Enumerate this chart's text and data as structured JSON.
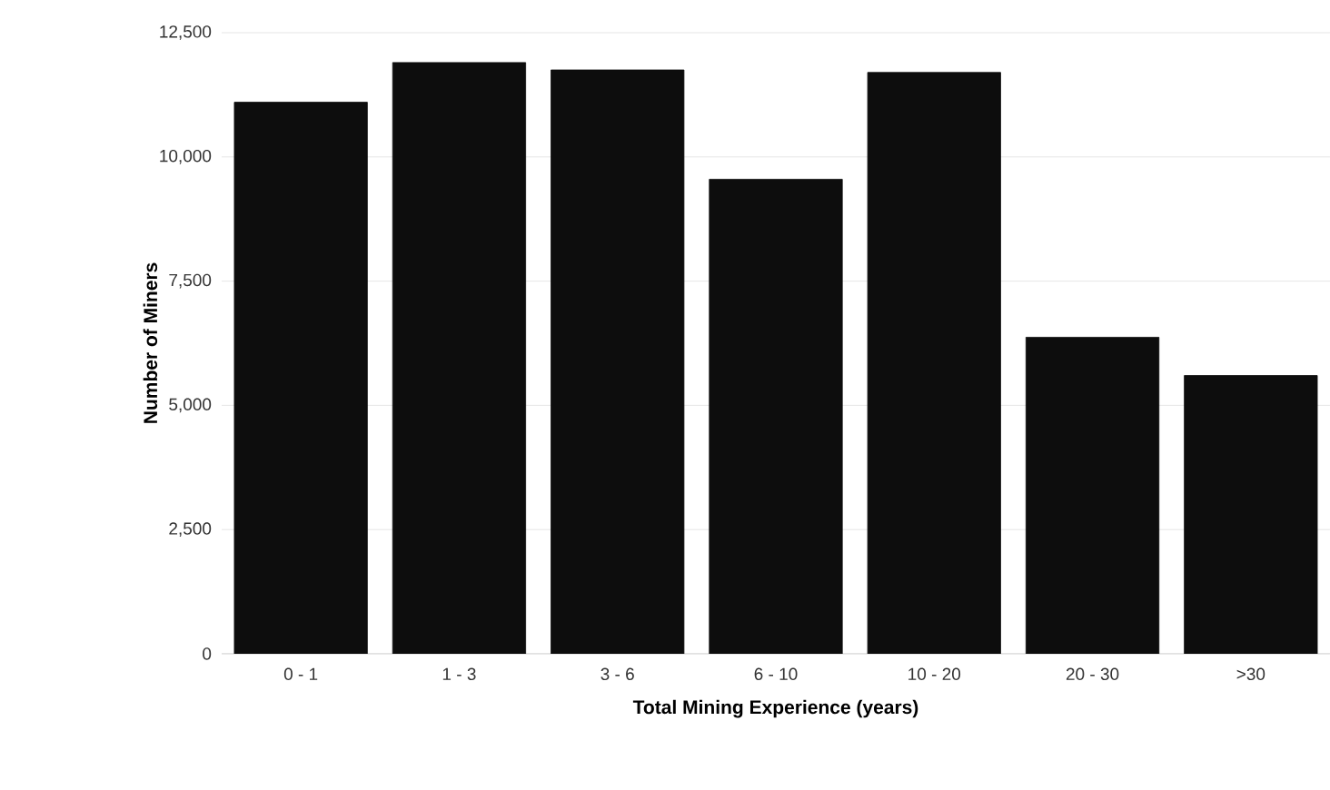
{
  "chart_data": {
    "type": "bar",
    "xlabel": "Total Mining Experience (years)",
    "ylabel": "Number of Miners",
    "categories": [
      "0 - 1",
      "1 - 3",
      "3 - 6",
      "6 - 10",
      "10 - 20",
      "20 - 30",
      ">30"
    ],
    "values": [
      11100,
      11900,
      11750,
      9550,
      11700,
      6370,
      5600
    ],
    "color": "#0d0d0d",
    "ylim": [
      0,
      12500
    ],
    "yticks": [
      {
        "value": 0,
        "label": "0"
      },
      {
        "value": 2500,
        "label": "2,500"
      },
      {
        "value": 5000,
        "label": "5,000"
      },
      {
        "value": 7500,
        "label": "7,500"
      },
      {
        "value": 10000,
        "label": "10,000"
      },
      {
        "value": 12500,
        "label": "12,500"
      }
    ],
    "grid": "y"
  }
}
